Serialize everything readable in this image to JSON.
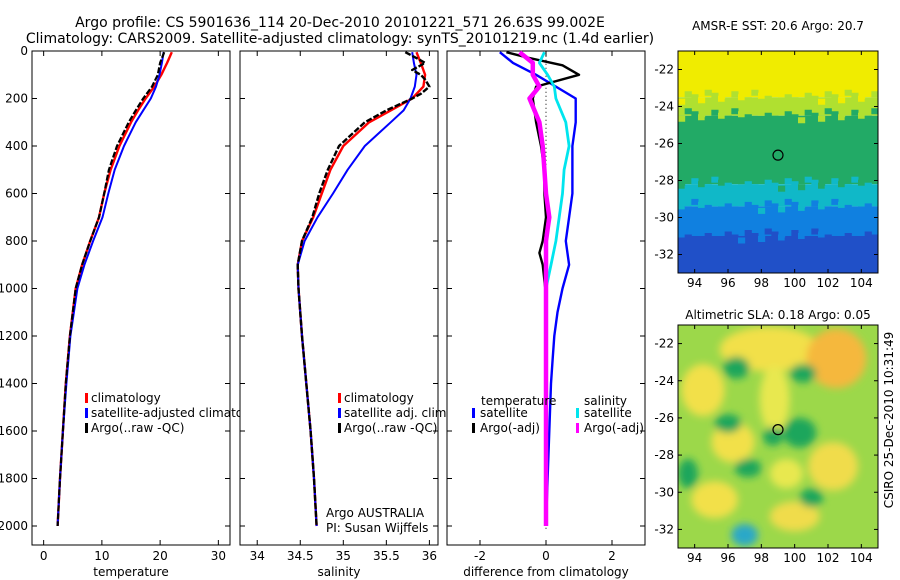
{
  "title": {
    "line1": "Argo profile: CS 5901636_114 20-Dec-2010 20101221_571 26.63S 99.002E",
    "line2": "Climatology: CARS2009. Satellite-adjusted climatology: synTS_20101219.nc (1.4d earlier)"
  },
  "credit": "CSIRO 25-Dec-2010 10:31:49",
  "colors": {
    "climatology": "#ff0000",
    "satellite": "#0000ff",
    "argo": "#000000",
    "cyan": "#00e5ee",
    "magenta": "#ff00ff"
  },
  "chart_data": [
    {
      "id": "temperature",
      "type": "line",
      "xlabel": "temperature",
      "ylabel": "",
      "xlim": [
        -2,
        32
      ],
      "ylim": [
        2080,
        0
      ],
      "xticks": [
        0,
        10,
        20,
        30
      ],
      "yticks": [
        0,
        200,
        400,
        600,
        800,
        1000,
        1200,
        1400,
        1600,
        1800,
        2000
      ],
      "legend": [
        "climatology",
        "satellite-adjusted climatology",
        "Argo(..raw -QC)"
      ],
      "series": [
        {
          "name": "climatology",
          "color": "#ff0000",
          "depth": [
            5,
            50,
            100,
            150,
            200,
            250,
            300,
            400,
            500,
            600,
            700,
            800,
            900,
            1000,
            1200,
            1400,
            1600,
            1800,
            2000
          ],
          "values": [
            22.0,
            21.2,
            20.2,
            19.0,
            17.5,
            16.2,
            15.0,
            13.0,
            11.5,
            10.4,
            9.5,
            8.0,
            6.6,
            5.5,
            4.5,
            3.8,
            3.3,
            2.8,
            2.4
          ]
        },
        {
          "name": "satellite-adjusted climatology",
          "color": "#0000ff",
          "depth": [
            5,
            50,
            100,
            150,
            200,
            250,
            300,
            400,
            500,
            600,
            700,
            800,
            900,
            1000,
            1200,
            1400,
            1600,
            1800,
            2000
          ],
          "values": [
            20.6,
            20.3,
            19.9,
            19.3,
            18.4,
            17.1,
            15.8,
            13.8,
            12.2,
            11.1,
            10.1,
            8.5,
            7.0,
            5.8,
            4.6,
            3.9,
            3.3,
            2.8,
            2.4
          ]
        },
        {
          "name": "Argo(..raw -QC)",
          "color": "#000000",
          "depth": [
            5,
            50,
            100,
            150,
            200,
            250,
            300,
            400,
            500,
            600,
            700,
            800,
            900,
            1000,
            1200,
            1400,
            1600,
            1800,
            2000
          ],
          "values": [
            20.7,
            20.0,
            19.6,
            18.6,
            17.1,
            15.8,
            14.6,
            12.6,
            11.2,
            10.4,
            9.5,
            8.0,
            6.6,
            5.5,
            4.5,
            3.8,
            3.3,
            2.8,
            2.4
          ]
        }
      ]
    },
    {
      "id": "salinity",
      "type": "line",
      "xlabel": "salinity",
      "xlim": [
        33.8,
        36.1
      ],
      "ylim": [
        2080,
        0
      ],
      "xticks": [
        34,
        34.5,
        35,
        35.5,
        36
      ],
      "legend": [
        "climatology",
        "satellite adj. clim.",
        "Argo(..raw -QC)"
      ],
      "annotation": [
        "Argo AUSTRALIA",
        "PI: Susan Wijffels"
      ],
      "series": [
        {
          "name": "climatology",
          "color": "#ff0000",
          "depth": [
            5,
            50,
            100,
            150,
            200,
            250,
            300,
            400,
            500,
            600,
            700,
            800,
            900,
            1000,
            1200,
            1400,
            1600,
            1800,
            2000
          ],
          "values": [
            35.85,
            35.9,
            35.95,
            35.93,
            35.8,
            35.55,
            35.3,
            35.0,
            34.85,
            34.75,
            34.65,
            34.52,
            34.47,
            34.48,
            34.52,
            34.57,
            34.62,
            34.66,
            34.69
          ]
        },
        {
          "name": "satellite adj. clim.",
          "color": "#0000ff",
          "depth": [
            5,
            50,
            100,
            150,
            200,
            250,
            300,
            400,
            500,
            600,
            700,
            800,
            900,
            1000,
            1200,
            1400,
            1600,
            1800,
            2000
          ],
          "values": [
            35.8,
            35.82,
            35.85,
            35.83,
            35.78,
            35.7,
            35.55,
            35.25,
            35.05,
            34.88,
            34.7,
            34.55,
            34.47,
            34.48,
            34.52,
            34.57,
            34.62,
            34.66,
            34.69
          ]
        },
        {
          "name": "Argo(..raw -QC)",
          "color": "#000000",
          "depth": [
            5,
            30,
            50,
            80,
            100,
            120,
            150,
            180,
            200,
            250,
            300,
            400,
            500,
            600,
            700,
            800,
            900,
            1000,
            1200,
            1400,
            1600,
            1800,
            2000
          ],
          "values": [
            35.72,
            35.85,
            35.95,
            35.8,
            35.9,
            35.95,
            36.0,
            35.9,
            35.8,
            35.5,
            35.25,
            34.95,
            34.82,
            34.72,
            34.64,
            34.52,
            34.47,
            34.48,
            34.52,
            34.57,
            34.62,
            34.66,
            34.69
          ]
        }
      ]
    },
    {
      "id": "difference",
      "type": "line",
      "xlabel": "difference from climatology",
      "xlim": [
        -3,
        3
      ],
      "ylim": [
        2080,
        0
      ],
      "xticks": [
        -2,
        0,
        2
      ],
      "legend_headers": [
        "temperature",
        "salinity"
      ],
      "legend": [
        "satellite",
        "Argo(-adj)",
        "satellite",
        "Argo(-adj)"
      ],
      "series": [
        {
          "name": "temperature satellite",
          "color": "#0000ff",
          "depth": [
            5,
            50,
            100,
            150,
            200,
            250,
            300,
            400,
            500,
            600,
            700,
            800,
            900,
            1000,
            1100,
            1200,
            1300,
            1400,
            1600,
            1800,
            2000
          ],
          "values": [
            -1.4,
            -1.0,
            -0.3,
            0.3,
            0.9,
            0.9,
            0.9,
            0.8,
            0.8,
            0.8,
            0.7,
            0.6,
            0.7,
            0.5,
            0.35,
            0.25,
            0.2,
            0.15,
            0.1,
            0.05,
            0.0
          ]
        },
        {
          "name": "temperature Argo(-adj)",
          "color": "#000000",
          "depth": [
            5,
            30,
            60,
            100,
            150,
            200,
            300,
            400,
            500,
            600,
            700,
            800,
            850,
            900,
            1000,
            1200,
            1400,
            1600,
            1800,
            2000
          ],
          "values": [
            -1.2,
            -0.5,
            0.5,
            1.0,
            -0.3,
            -0.4,
            -0.3,
            -0.15,
            -0.05,
            -0.05,
            0.0,
            -0.1,
            -0.2,
            -0.1,
            -0.02,
            -0.02,
            -0.02,
            0.0,
            0.0,
            0.0
          ]
        },
        {
          "name": "salinity satellite",
          "color": "#00e5ee",
          "depth": [
            5,
            50,
            100,
            150,
            200,
            300,
            400,
            500,
            600,
            700,
            800,
            900,
            1000,
            1200,
            1400,
            1600,
            1800,
            2000
          ],
          "values": [
            -0.05,
            -0.2,
            0.05,
            0.25,
            0.3,
            0.6,
            0.7,
            0.55,
            0.5,
            0.4,
            0.3,
            0.15,
            0.0,
            0.0,
            0.0,
            0.0,
            0.0,
            0.0
          ]
        },
        {
          "name": "salinity Argo(-adj)",
          "color": "#ff00ff",
          "depth": [
            5,
            50,
            100,
            150,
            200,
            300,
            400,
            500,
            600,
            700,
            750,
            800,
            900,
            1000,
            1200,
            1400,
            1600,
            1800,
            2000
          ],
          "values": [
            -0.8,
            -0.4,
            -0.4,
            -0.2,
            -0.5,
            -0.2,
            -0.1,
            -0.05,
            0.0,
            0.1,
            0.05,
            0.0,
            0.0,
            0.0,
            0.0,
            0.0,
            0.0,
            0.0,
            0.0
          ]
        }
      ]
    },
    {
      "id": "sst_map",
      "type": "heatmap",
      "title": "AMSR-E SST: 20.6 Argo: 20.7",
      "xlim": [
        93,
        105
      ],
      "ylim": [
        -33,
        -21
      ],
      "xticks": [
        94,
        96,
        98,
        100,
        102,
        104
      ],
      "yticks": [
        -22,
        -24,
        -26,
        -28,
        -30,
        -32
      ],
      "marker": {
        "lon": 99.0,
        "lat": -26.63
      },
      "bands": [
        {
          "lat_top": -21,
          "lat_bottom": -23.5,
          "color": "#f0ec00"
        },
        {
          "lat_top": -23.5,
          "lat_bottom": -24.5,
          "color": "#b0e030"
        },
        {
          "lat_top": -24.5,
          "lat_bottom": -28.2,
          "color": "#22aa66"
        },
        {
          "lat_top": -28.2,
          "lat_bottom": -29.4,
          "color": "#10b8c8"
        },
        {
          "lat_top": -29.4,
          "lat_bottom": -31.0,
          "color": "#1080e0"
        },
        {
          "lat_top": -31.0,
          "lat_bottom": -33,
          "color": "#2050c8"
        }
      ]
    },
    {
      "id": "sla_map",
      "type": "heatmap",
      "title": "Altimetric SLA: 0.18 Argo: 0.05",
      "xlim": [
        93,
        105
      ],
      "ylim": [
        -33,
        -21
      ],
      "xticks": [
        94,
        96,
        98,
        100,
        102,
        104
      ],
      "yticks": [
        -22,
        -24,
        -26,
        -28,
        -30,
        -32
      ],
      "marker": {
        "lon": 99.0,
        "lat": -26.63
      },
      "background": "#9cd84a",
      "blobs": [
        {
          "lon": 98.5,
          "lat": -22.3,
          "rx": 3.0,
          "ry": 1.2,
          "color": "#f2e04a"
        },
        {
          "lon": 102.5,
          "lat": -22.8,
          "rx": 1.8,
          "ry": 1.6,
          "color": "#f5b83c"
        },
        {
          "lon": 94.5,
          "lat": -24.5,
          "rx": 1.3,
          "ry": 1.4,
          "color": "#f2e04a"
        },
        {
          "lon": 98.8,
          "lat": -25.0,
          "rx": 0.9,
          "ry": 1.8,
          "color": "#e8e850"
        },
        {
          "lon": 96.3,
          "lat": -27.3,
          "rx": 1.3,
          "ry": 1.1,
          "color": "#f2e04a"
        },
        {
          "lon": 102.3,
          "lat": -28.6,
          "rx": 1.5,
          "ry": 1.3,
          "color": "#f0dc4c"
        },
        {
          "lon": 99.5,
          "lat": -29.0,
          "rx": 1.0,
          "ry": 0.8,
          "color": "#e8e850"
        },
        {
          "lon": 95.2,
          "lat": -30.4,
          "rx": 1.4,
          "ry": 1.0,
          "color": "#f2e04a"
        },
        {
          "lon": 100.0,
          "lat": -31.3,
          "rx": 1.5,
          "ry": 0.8,
          "color": "#f0dc4c"
        },
        {
          "lon": 96.5,
          "lat": -23.3,
          "rx": 0.8,
          "ry": 0.6,
          "color": "#1aa65c"
        },
        {
          "lon": 100.5,
          "lat": -23.6,
          "rx": 0.8,
          "ry": 0.5,
          "color": "#1aa65c"
        },
        {
          "lon": 98.7,
          "lat": -27.0,
          "rx": 0.6,
          "ry": 0.5,
          "color": "#1aa65c"
        },
        {
          "lon": 100.3,
          "lat": -26.8,
          "rx": 1.0,
          "ry": 0.8,
          "color": "#1aa65c"
        },
        {
          "lon": 96.0,
          "lat": -26.3,
          "rx": 0.8,
          "ry": 0.5,
          "color": "#1aa65c"
        },
        {
          "lon": 97.2,
          "lat": -28.7,
          "rx": 0.8,
          "ry": 0.5,
          "color": "#1aa65c"
        },
        {
          "lon": 101.0,
          "lat": -30.3,
          "rx": 0.7,
          "ry": 0.5,
          "color": "#1aa65c"
        },
        {
          "lon": 93.6,
          "lat": -29.0,
          "rx": 0.6,
          "ry": 0.8,
          "color": "#1aa65c"
        },
        {
          "lon": 97.0,
          "lat": -32.3,
          "rx": 0.8,
          "ry": 0.6,
          "color": "#2aa8c8"
        }
      ]
    }
  ]
}
